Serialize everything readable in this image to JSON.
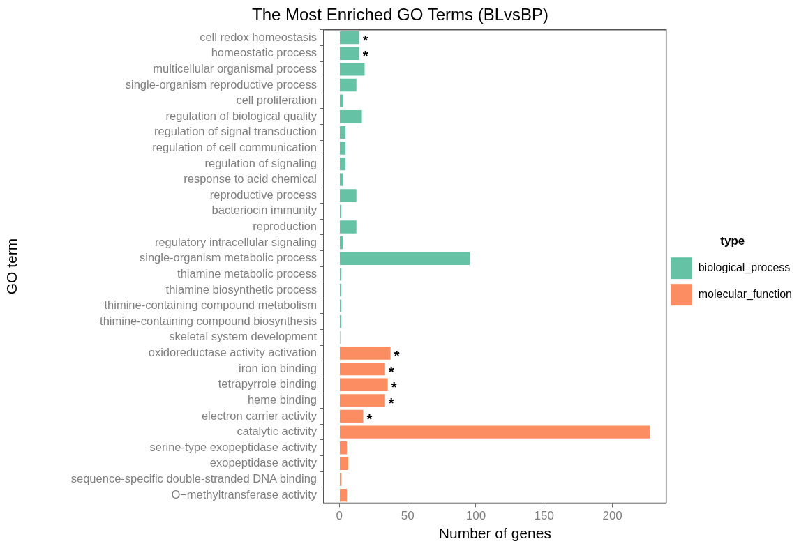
{
  "chart_data": {
    "type": "bar",
    "orientation": "horizontal",
    "title": "The Most Enriched GO Terms (BLvsBP)",
    "xlabel": "Number of genes",
    "ylabel": "GO term",
    "legend_title": "type",
    "legend": "right",
    "categories": [
      "cell redox homeostasis",
      "homeostatic process",
      "multicellular organismal process",
      "single-organism reproductive process",
      "cell proliferation",
      "regulation of biological quality",
      "regulation of signal transduction",
      "regulation of cell communication",
      "regulation of signaling",
      "response to acid chemical",
      "reproductive process",
      "bacteriocin immunity",
      "reproduction",
      "regulatory intracellular signaling",
      "single-organism metabolic process",
      "thiamine metabolic process",
      "thiamine biosynthetic process",
      "thimine-containing compound metabolism",
      "thimine-containing compound biosynthesis",
      "skeletal system development",
      "oxidoreductase activity activation",
      "iron ion binding",
      "tetrapyrrole binding",
      "heme binding",
      "electron carrier activity",
      "catalytic activity",
      "serine-type exopeptidase activity",
      "exopeptidase activity",
      "sequence-specific double-stranded DNA binding",
      "O−methyltransferase activity"
    ],
    "series": [
      {
        "name": "biological_process",
        "color": "#66c2a5",
        "values": [
          15,
          15,
          19,
          13,
          3,
          17,
          5,
          5,
          5,
          3,
          13,
          2,
          13,
          3,
          96,
          2,
          2,
          2,
          2,
          1,
          null,
          null,
          null,
          null,
          null,
          null,
          null,
          null,
          null,
          null
        ]
      },
      {
        "name": "molecular_function",
        "color": "#fc8d62",
        "values": [
          null,
          null,
          null,
          null,
          null,
          null,
          null,
          null,
          null,
          null,
          null,
          null,
          null,
          null,
          null,
          null,
          null,
          null,
          null,
          null,
          38,
          34,
          36,
          34,
          18,
          228,
          6,
          7,
          2,
          6
        ]
      }
    ],
    "xlim": [
      -11.4,
      239.4
    ],
    "xticks": [
      0,
      50,
      100,
      150,
      200
    ],
    "grid": false,
    "annotations": [
      {
        "text": "*",
        "x": 15,
        "y": "cell redox homeostasis"
      },
      {
        "text": "*",
        "x": 15,
        "y": "homeostatic process"
      },
      {
        "text": "*",
        "x": 38,
        "y": "oxidoreductase activity activation"
      },
      {
        "text": "*",
        "x": 34,
        "y": "iron ion binding"
      },
      {
        "text": "*",
        "x": 36,
        "y": "tetrapyrrole binding"
      },
      {
        "text": "*",
        "x": 34,
        "y": "heme binding"
      },
      {
        "text": "*",
        "x": 18,
        "y": "electron carrier activity"
      }
    ]
  }
}
